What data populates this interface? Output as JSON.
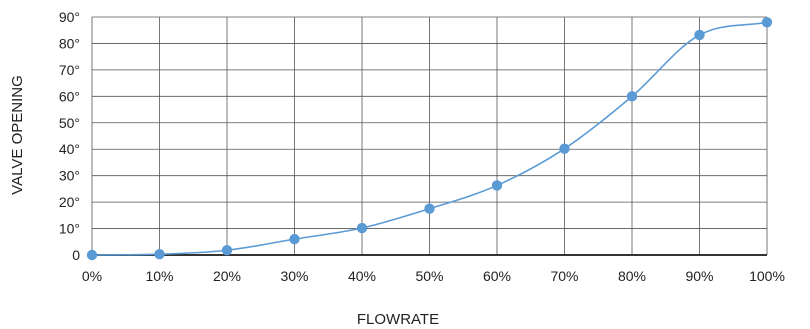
{
  "chart_data": {
    "type": "line",
    "title": "",
    "xlabel": "FLOWRATE",
    "ylabel": "VALVE OPENING",
    "x": [
      0,
      10,
      20,
      30,
      40,
      50,
      60,
      70,
      80,
      90,
      100
    ],
    "x_tick_labels": [
      "0%",
      "10%",
      "20%",
      "30%",
      "40%",
      "50%",
      "60%",
      "70%",
      "80%",
      "90%",
      "100%"
    ],
    "y_tick_values": [
      0,
      10,
      20,
      30,
      40,
      50,
      60,
      70,
      80,
      90
    ],
    "y_tick_labels": [
      "0",
      "10°",
      "20°",
      "30°",
      "40°",
      "50°",
      "60°",
      "70°",
      "80°",
      "90°"
    ],
    "xlim": [
      0,
      100
    ],
    "ylim": [
      0,
      90
    ],
    "grid": true,
    "series": [
      {
        "values": [
          0,
          0.3,
          1.8,
          6,
          10.2,
          17.5,
          26.3,
          40.2,
          60,
          83.2,
          88
        ]
      }
    ],
    "colors": {
      "series": "#5b9bd5",
      "grid": "#555555",
      "axis": "#333333"
    }
  }
}
